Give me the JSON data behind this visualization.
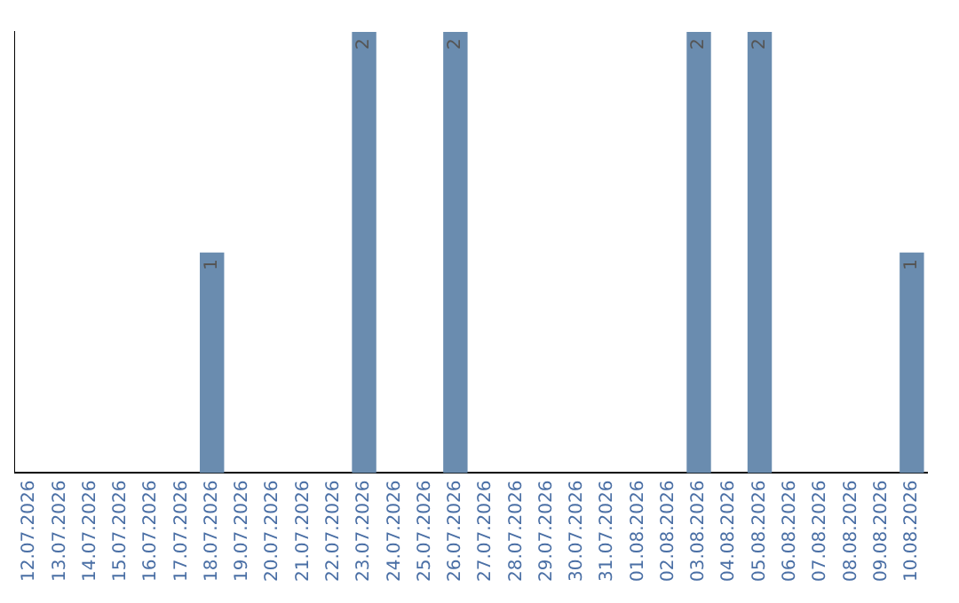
{
  "chart_data": {
    "type": "bar",
    "categories": [
      "12.07.2026",
      "13.07.2026",
      "14.07.2026",
      "15.07.2026",
      "16.07.2026",
      "17.07.2026",
      "18.07.2026",
      "19.07.2026",
      "20.07.2026",
      "21.07.2026",
      "22.07.2026",
      "23.07.2026",
      "24.07.2026",
      "25.07.2026",
      "26.07.2026",
      "27.07.2026",
      "28.07.2026",
      "29.07.2026",
      "30.07.2026",
      "31.07.2026",
      "01.08.2026",
      "02.08.2026",
      "03.08.2026",
      "04.08.2026",
      "05.08.2026",
      "06.08.2026",
      "07.08.2026",
      "08.08.2026",
      "09.08.2026",
      "10.08.2026"
    ],
    "values": [
      0,
      0,
      0,
      0,
      0,
      0,
      1,
      0,
      0,
      0,
      0,
      2,
      0,
      0,
      2,
      0,
      0,
      0,
      0,
      0,
      0,
      0,
      2,
      0,
      2,
      0,
      0,
      0,
      0,
      1
    ],
    "value_labels": [
      null,
      null,
      null,
      null,
      null,
      null,
      "1",
      null,
      null,
      null,
      null,
      "2",
      null,
      null,
      "2",
      null,
      null,
      null,
      null,
      null,
      null,
      null,
      "2",
      null,
      "2",
      null,
      null,
      null,
      null,
      "1"
    ],
    "color": "#6a8caf",
    "ylim": [
      0,
      2
    ],
    "tick_labels": "x",
    "grid": false,
    "legend": false
  }
}
